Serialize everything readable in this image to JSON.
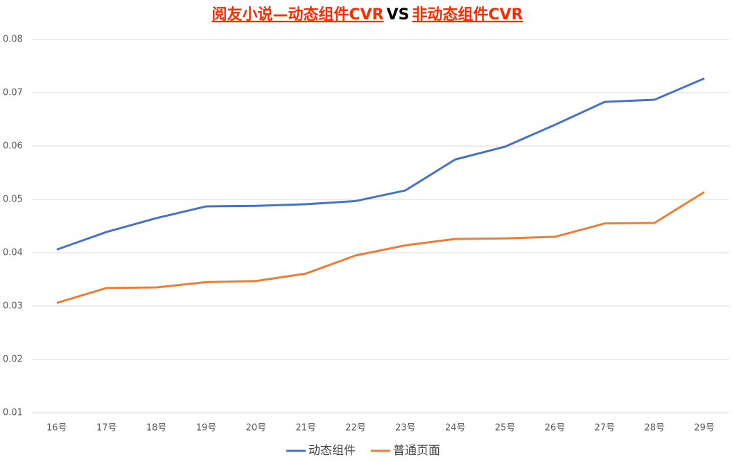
{
  "chart_data": {
    "type": "line",
    "title": [
      "阅友小说—动态组件CVR",
      "VS",
      "非动态组件CVR"
    ],
    "categories": [
      "16号",
      "17号",
      "18号",
      "19号",
      "20号",
      "21号",
      "22号",
      "23号",
      "24号",
      "25号",
      "26号",
      "27号",
      "28号",
      "29号"
    ],
    "series": [
      {
        "name": "动态组件",
        "color": "#4472c4",
        "values": [
          0.0406,
          0.0439,
          0.0465,
          0.0487,
          0.0488,
          0.0491,
          0.0497,
          0.0517,
          0.0575,
          0.0599,
          0.064,
          0.0683,
          0.0687,
          0.0727
        ]
      },
      {
        "name": "普通页面",
        "color": "#ed7d31",
        "values": [
          0.0306,
          0.0334,
          0.0335,
          0.0345,
          0.0347,
          0.0361,
          0.0395,
          0.0414,
          0.0426,
          0.0427,
          0.043,
          0.0455,
          0.0456,
          0.0514
        ]
      }
    ],
    "ylim": [
      0.01,
      0.08
    ],
    "yticks": [
      0.01,
      0.02,
      0.03,
      0.04,
      0.05,
      0.06,
      0.07,
      0.08
    ],
    "grid": true,
    "legend": "bottom"
  }
}
